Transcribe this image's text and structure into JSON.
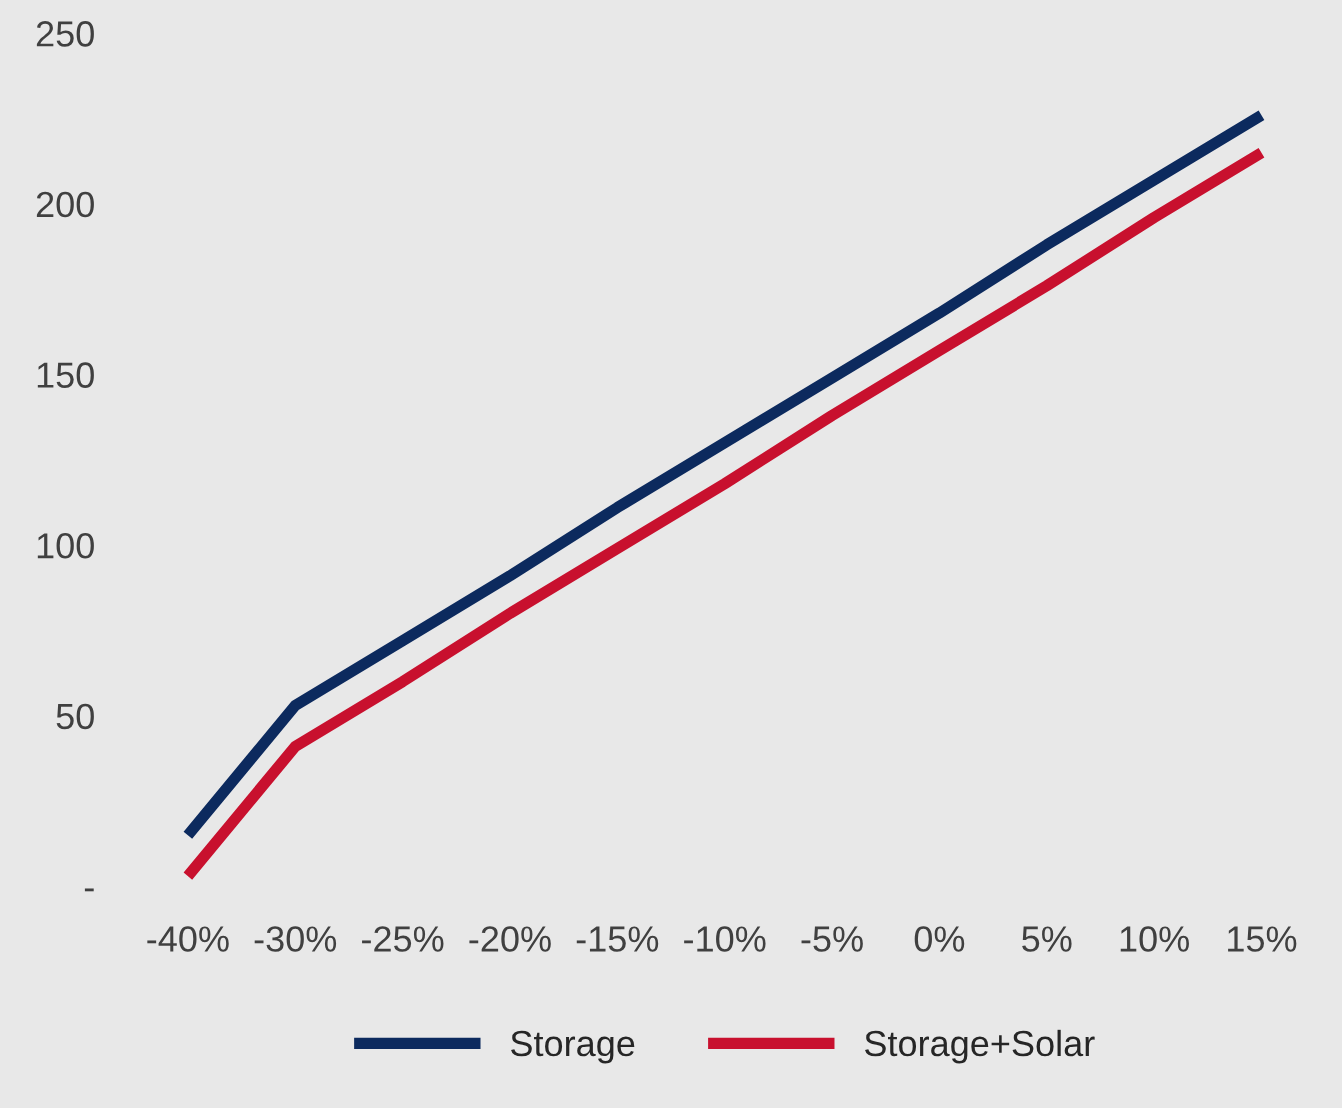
{
  "chart_data": {
    "type": "line",
    "categories": [
      "-40%",
      "-30%",
      "-25%",
      "-20%",
      "-15%",
      "-10%",
      "-5%",
      "0%",
      "5%",
      "10%",
      "15%"
    ],
    "series": [
      {
        "name": "Storage",
        "color": "#0c2a5e",
        "values": [
          15,
          53,
          72,
          91,
          111,
          130,
          149,
          168,
          188,
          207,
          226
        ]
      },
      {
        "name": "Storage+Solar",
        "color": "#c8102e",
        "values": [
          3,
          41,
          60,
          80,
          99,
          118,
          138,
          157,
          176,
          196,
          215
        ]
      }
    ],
    "ylim": [
      0,
      250
    ],
    "yticks": [
      {
        "value": 0,
        "label": "-"
      },
      50,
      100,
      150,
      200,
      250
    ],
    "grid": false,
    "legend": "bottom",
    "marker": "none",
    "line_style": "solid"
  }
}
